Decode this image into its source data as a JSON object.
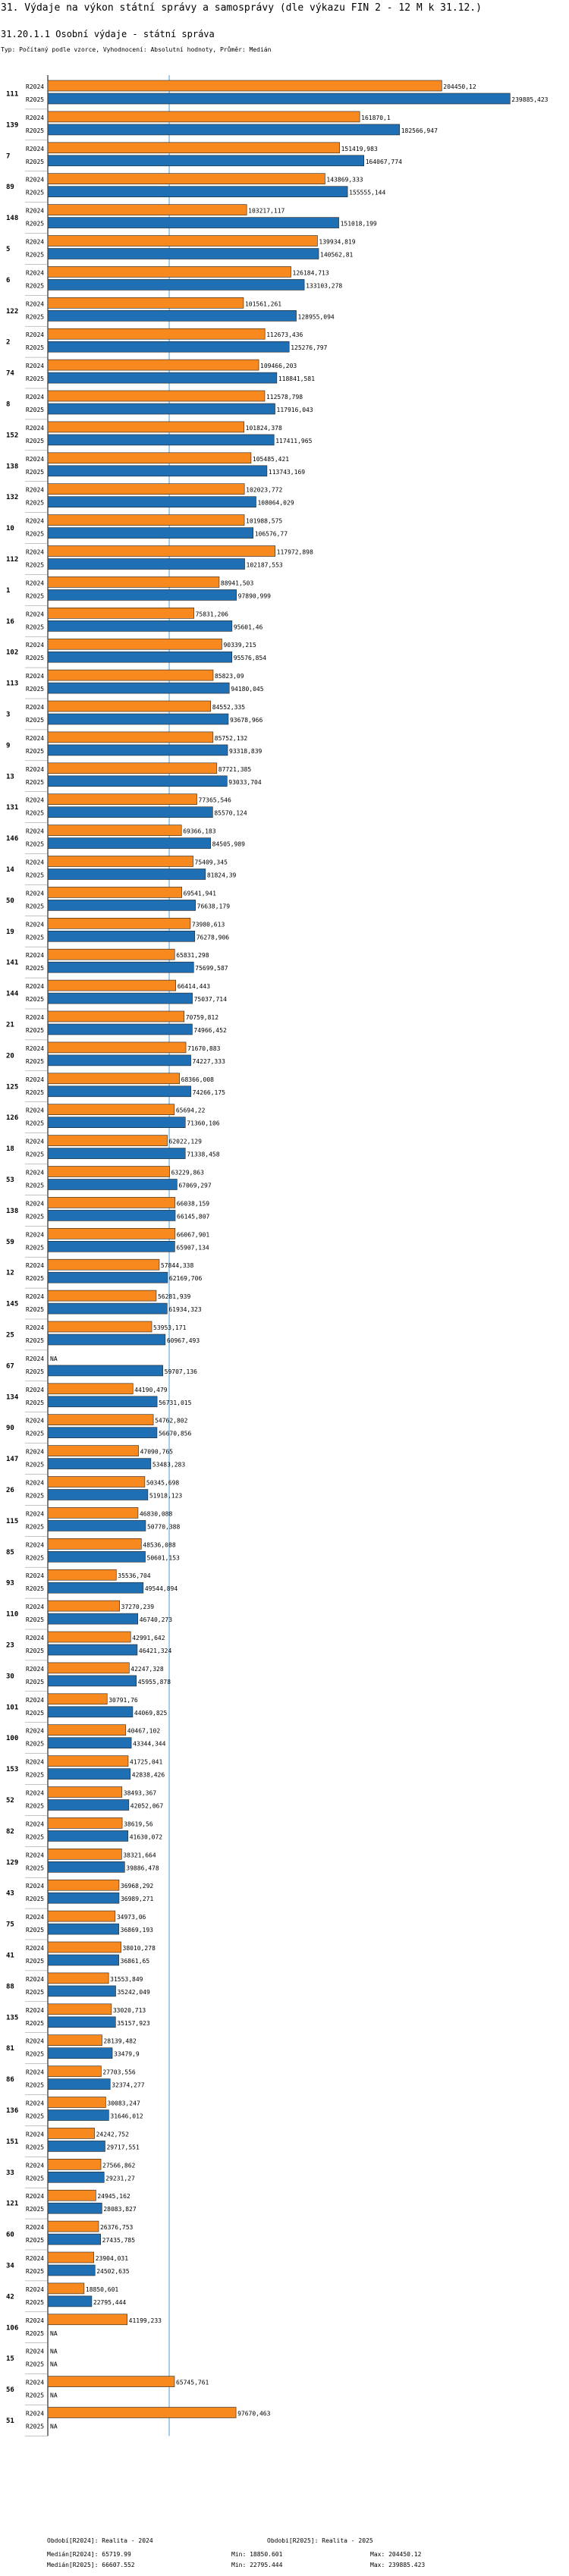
{
  "header": {
    "title": "31. Výdaje na výkon státní správy a samosprávy (dle výkazu FIN 2 - 12 M k 31.12.)",
    "subtitle": "31.20.1.1 Osobní výdaje - státní správa",
    "note": "Typ: Počítaný podle vzorce, Vyhodnocení: Absolutní hodnoty, Průměr: Medián"
  },
  "colors": {
    "r2024": "#f7891f",
    "r2025": "#1f6fb5",
    "median": "#4a9fd4"
  },
  "chart_data": {
    "type": "bar",
    "orientation": "horizontal",
    "xlim": [
      0,
      250000
    ],
    "series": [
      {
        "name": "R2024",
        "label": "Realita - 2024"
      },
      {
        "name": "R2025",
        "label": "Realita - 2025"
      }
    ],
    "median_line": 63000,
    "categories": [
      "111",
      "139",
      "7",
      "89",
      "148",
      "5",
      "6",
      "122",
      "2",
      "74",
      "8",
      "152",
      "138",
      "132",
      "10",
      "112",
      "1",
      "16",
      "102",
      "113",
      "3",
      "9",
      "13",
      "131",
      "146",
      "14",
      "50",
      "19",
      "141",
      "144",
      "21",
      "20",
      "125",
      "126",
      "18",
      "53",
      "138",
      "59",
      "12",
      "145",
      "25",
      "67",
      "134",
      "90",
      "147",
      "26",
      "115",
      "85",
      "93",
      "110",
      "23",
      "30",
      "101",
      "100",
      "153",
      "52",
      "82",
      "129",
      "43",
      "75",
      "41",
      "88",
      "135",
      "81",
      "86",
      "136",
      "151",
      "33",
      "121",
      "60",
      "34",
      "42",
      "106",
      "15",
      "56",
      "51"
    ],
    "r2024": [
      204450.12,
      161870.1,
      151419.983,
      143869.333,
      103217.117,
      139934.819,
      126184.713,
      101561.261,
      112673.436,
      109466.203,
      112578.798,
      101824.378,
      105485.421,
      102023.772,
      101988.575,
      117972.898,
      88941.503,
      75831.206,
      90339.215,
      85823.09,
      84552.335,
      85752.132,
      87721.385,
      77365.546,
      69366.183,
      75409.345,
      69541.941,
      73980.613,
      65831.298,
      66414.443,
      70759.812,
      71670.883,
      68366.008,
      65694.22,
      62022.129,
      63229.863,
      66038.159,
      66067.901,
      57844.338,
      56281.939,
      53953.171,
      null,
      44190.479,
      54762.802,
      47090.765,
      50345.698,
      46830.088,
      48536.088,
      35536.704,
      37270.239,
      42991.642,
      42247.328,
      30791.76,
      40467.102,
      41725.041,
      38493.367,
      38619.56,
      38321.664,
      36968.292,
      34973.06,
      38010.278,
      31553.849,
      33020.713,
      28139.482,
      27703.556,
      30083.247,
      24242.752,
      27566.862,
      24945.162,
      26376.753,
      23904.031,
      18850.601,
      41199.233,
      null,
      65745.761,
      97670.463
    ],
    "r2025": [
      239885.423,
      182566.947,
      164067.774,
      155555.144,
      151018.199,
      140562.81,
      133103.278,
      128955.094,
      125276.797,
      118841.581,
      117916.043,
      117411.965,
      113743.169,
      108064.029,
      106576.77,
      102187.553,
      97890.999,
      95601.46,
      95576.854,
      94180.045,
      93678.966,
      93318.839,
      93033.704,
      85570.124,
      84505.989,
      81824.39,
      76638.179,
      76278.906,
      75699.587,
      75037.714,
      74966.452,
      74227.333,
      74266.175,
      71360.106,
      71338.458,
      67069.297,
      66145.807,
      65907.134,
      62169.706,
      61934.323,
      60967.493,
      59707.136,
      56731.015,
      56670.856,
      53483.283,
      51918.123,
      50770.388,
      50601.153,
      49544.894,
      46740.273,
      46421.324,
      45955.878,
      44069.825,
      43344.344,
      42838.426,
      42052.067,
      41630.072,
      39886.478,
      36989.271,
      36869.193,
      36861.65,
      35242.049,
      35157.923,
      33479.9,
      32374.277,
      31646.012,
      29717.551,
      29231.27,
      28083.827,
      27435.785,
      24502.635,
      22795.444,
      null,
      null,
      null,
      null
    ]
  },
  "legend": {
    "left": [
      "Období[R2024]: Realita - 2024",
      "Medián[R2024]: 65719.99",
      "Medián[R2025]: 66607.552"
    ],
    "mid": [
      "Obdobi[R2025]: Realita - 2025",
      "Min: 18850.601",
      "Min: 22795.444"
    ],
    "right": [
      "Max: 204450.12",
      "Max: 239885.423"
    ]
  },
  "na_label": "NA"
}
